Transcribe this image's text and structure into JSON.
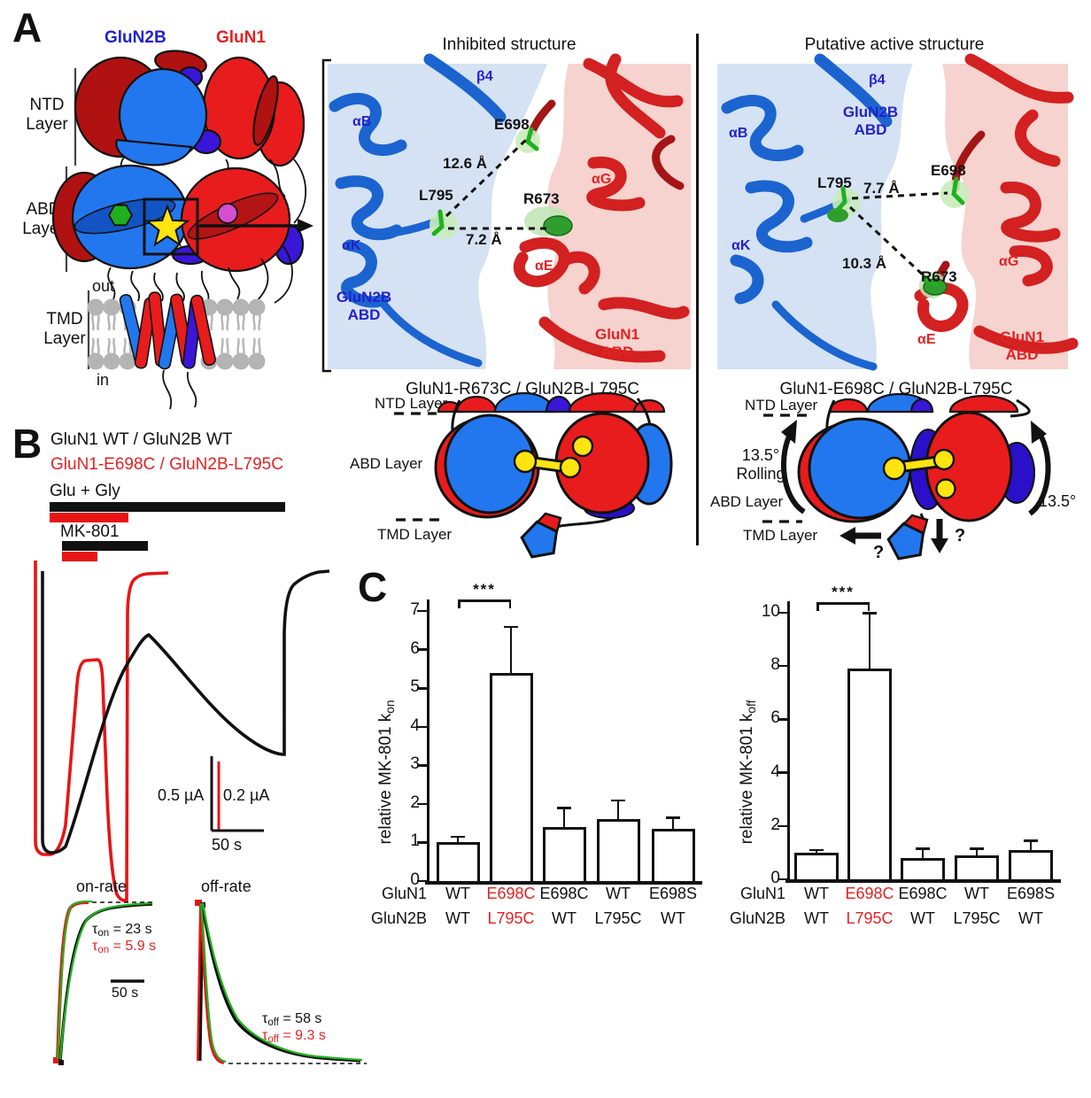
{
  "panel_a": {
    "label": "A",
    "glun2b": "GluN2B",
    "glun1": "GluN1",
    "ntd": "NTD\nLayer",
    "abd": "ABD\nLayer",
    "tmd": "TMD\nLayer",
    "out": "out",
    "in_label": "in",
    "star": "5",
    "inhibited": {
      "title": "Inhibited structure",
      "b4": "β4",
      "aB": "αB",
      "aK": "αK",
      "aG": "αG",
      "aE": "αE",
      "e698": "E698",
      "l795": "L795",
      "r673": "R673",
      "dist_top": "12.6 Å",
      "dist_bottom": "7.2 Å",
      "glun2b_abd": "GluN2B\nABD",
      "glun1_abd": "GluN1\nABD"
    },
    "active": {
      "title": "Putative active structure",
      "b4": "β4",
      "aB": "αB",
      "aK": "αK",
      "aG": "αG",
      "aE": "αE",
      "e698": "E698",
      "l795": "L795",
      "r673": "R673",
      "dist_top": "7.7 Å",
      "dist_bottom": "10.3 Å",
      "glun2b_abd": "GluN2B\nABD",
      "glun1_abd": "GluN1\nABD"
    },
    "cartoon_inhibited": {
      "title": "GluN1-R673C / GluN2B-L795C",
      "ntd": "NTD Layer",
      "abd": "ABD Layer",
      "tmd": "TMD Layer"
    },
    "cartoon_active": {
      "title": "GluN1-E698C / GluN2B-L795C",
      "ntd": "NTD Layer",
      "abd": "ABD Layer",
      "tmd": "TMD Layer",
      "rolling": "13.5°\nRolling",
      "degree": "13.5°",
      "q_down": "?",
      "q_left": "?"
    }
  },
  "panel_b": {
    "label": "B",
    "wt": "GluN1 WT / GluN2B WT",
    "mutant": "GluN1-E698C / GluN2B-L795C",
    "glu_gly": "Glu + Gly",
    "mk801": "MK-801",
    "scale_v_black": "0.5 µA",
    "scale_v_red": "0.2 µA",
    "scale_h": "50 s",
    "inset": {
      "on_title": "on-rate",
      "off_title": "off-rate",
      "scale": "50 s",
      "tau_on_wt": {
        "sym": "τ",
        "sub": "on",
        "rest": " = 23 s"
      },
      "tau_on_mut": {
        "sym": "τ",
        "sub": "on",
        "rest": " = 5.9 s"
      },
      "tau_off_wt": {
        "sym": "τ",
        "sub": "off",
        "rest": " = 58 s"
      },
      "tau_off_mut": {
        "sym": "τ",
        "sub": "off",
        "rest": " = 9.3 s"
      }
    }
  },
  "panel_c": {
    "label": "C"
  },
  "chart_data": [
    {
      "type": "bar",
      "ylabel_prefix": "relative MK-801 k",
      "ylabel_sub": "on",
      "ylim": [
        0,
        7
      ],
      "yticks": [
        0,
        1,
        2,
        3,
        4,
        5,
        6,
        7
      ],
      "row_labels": {
        "glun1": "GluN1",
        "glun2b": "GluN2B"
      },
      "categories_glun1": [
        "WT",
        "E698C",
        "E698C",
        "WT",
        "E698S"
      ],
      "categories_glun2b": [
        "WT",
        "L795C",
        "WT",
        "L795C",
        "WT"
      ],
      "highlight_index": 1,
      "values": [
        1.0,
        5.4,
        1.4,
        1.6,
        1.35
      ],
      "errors": [
        0.15,
        1.2,
        0.5,
        0.5,
        0.3
      ],
      "significance": {
        "label": "***",
        "from": 0,
        "to": 1
      },
      "legend_position": "none",
      "grid": false
    },
    {
      "type": "bar",
      "ylabel_prefix": "relative MK-801 k",
      "ylabel_sub": "off",
      "ylim": [
        0,
        10
      ],
      "yticks": [
        0,
        2,
        4,
        6,
        8,
        10
      ],
      "row_labels": {
        "glun1": "GluN1",
        "glun2b": "GluN2B"
      },
      "categories_glun1": [
        "WT",
        "E698C",
        "E698C",
        "WT",
        "E698S"
      ],
      "categories_glun2b": [
        "WT",
        "L795C",
        "WT",
        "L795C",
        "WT"
      ],
      "highlight_index": 1,
      "values": [
        1.0,
        7.9,
        0.8,
        0.9,
        1.1
      ],
      "errors": [
        0.1,
        2.1,
        0.35,
        0.25,
        0.35
      ],
      "significance": {
        "label": "***",
        "from": 0,
        "to": 1
      },
      "legend_position": "none",
      "grid": false
    }
  ],
  "colors": {
    "blue": "#2277ee",
    "red": "#e81c1c",
    "dark_red": "#b01212",
    "purple": "#3a16d8",
    "green": "#1faf1f",
    "magenta": "#d44fd0",
    "yellow": "#ffe411",
    "gray": "#b4b4b4",
    "ribbon_blue": "#1b64d0",
    "ribbon_red": "#d32020",
    "surface_blue": "#d5e2f4",
    "surface_red": "#f6d3cf",
    "label_blue": "#2222cc",
    "label_red": "#e32222",
    "trace_black": "#111111",
    "trace_red": "#e81414",
    "fit_green": "#1db31d"
  }
}
